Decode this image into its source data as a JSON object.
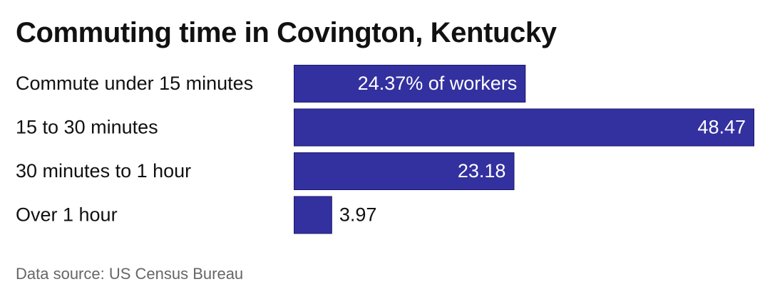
{
  "title": "Commuting time in Covington, Kentucky",
  "source": "Data source: US Census Bureau",
  "colors": {
    "bar": "#3330a0",
    "bar_stroke": "#1c1a6b",
    "label_inside": "#ffffff",
    "label_outside": "#111111",
    "category_text": "#111111",
    "source_text": "#666666"
  },
  "chart_data": {
    "type": "bar",
    "orientation": "horizontal",
    "categories": [
      "Commute under 15 minutes",
      "15 to 30 minutes",
      "30 minutes to 1 hour",
      "Over 1 hour"
    ],
    "values": [
      24.37,
      48.47,
      23.18,
      3.97
    ],
    "value_labels": [
      "24.37% of workers",
      "48.47",
      "23.18",
      "3.97"
    ],
    "title": "Commuting time in Covington, Kentucky",
    "xlabel": "",
    "ylabel": "",
    "xlim": [
      0,
      48.47
    ],
    "grid": false,
    "legend": "none"
  }
}
